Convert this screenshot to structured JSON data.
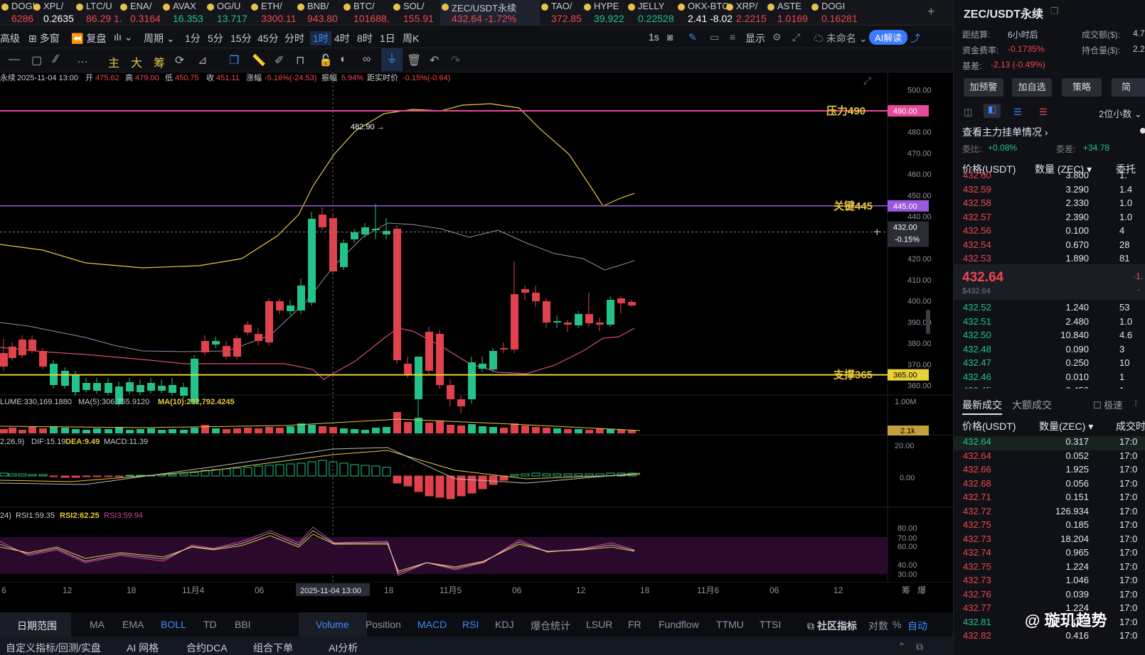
{
  "ticker": [
    {
      "sym": "DOGI",
      "px": "6286",
      "c": "#f0464f"
    },
    {
      "sym": "XPL/",
      "px": "0.2635",
      "c": "#ffffff"
    },
    {
      "sym": "LTC/U",
      "px": "86.29 1.",
      "c": "#f0464f"
    },
    {
      "sym": "ENA/",
      "px": "0.3164",
      "c": "#f0464f"
    },
    {
      "sym": "AVAX",
      "px": "16.353",
      "c": "#23c28a"
    },
    {
      "sym": "OG/U",
      "px": "13.717",
      "c": "#23c28a"
    },
    {
      "sym": "ETH/",
      "px": "3300.11",
      "c": "#f0464f"
    },
    {
      "sym": "BNB/",
      "px": "943.80",
      "c": "#f0464f"
    },
    {
      "sym": "BTC/",
      "px": "101688.",
      "c": "#f0464f"
    },
    {
      "sym": "SOL/",
      "px": "155.91",
      "c": "#f0464f"
    },
    {
      "sym": "ZEC/USDT永续",
      "px": "432.64 -1.72%",
      "c": "#f0464f",
      "active": true
    },
    {
      "sym": "TAO/",
      "px": "372.85",
      "c": "#f0464f"
    },
    {
      "sym": "HYPE",
      "px": "39.922",
      "c": "#23c28a"
    },
    {
      "sym": "JELLY",
      "px": "0.22528",
      "c": "#23c28a"
    },
    {
      "sym": "OKX-BTC",
      "px": "2.41 -8.02",
      "c": "#ffffff"
    },
    {
      "sym": "XRP/",
      "px": "2.2215",
      "c": "#f0464f"
    },
    {
      "sym": "ASTE",
      "px": "1.0169",
      "c": "#f0464f"
    },
    {
      "sym": "DOGI",
      "px": "0.16281",
      "c": "#f0464f"
    }
  ],
  "toolbar1": {
    "adv": "高级",
    "multi": "多窗",
    "restore": "复盘",
    "period": "周期",
    "p1": "1分",
    "p5": "5分",
    "p15": "15分",
    "p45": "45分",
    "pt": "分时",
    "p1h": "1时",
    "p4h": "4时",
    "p8h": "8时",
    "p1d": "1日",
    "pw": "周K",
    "s1": "1s",
    "show": "显示",
    "unnamed": "未命名",
    "ai": "AI解读"
  },
  "toolbar2": {
    "main": "主",
    "big": "大",
    "chip": "筹"
  },
  "info": {
    "name": "永续",
    "time": "2025-11-04 13:00",
    "open_l": "开",
    "open": "475.62",
    "high_l": "高",
    "high": "479.00",
    "low_l": "低",
    "low": "450.75",
    "close_l": "收",
    "close": "451.11",
    "chg_l": "涨幅",
    "chg": "-5.16%(-24.53)",
    "amp_l": "振幅",
    "amp": "5.94%",
    "rt_l": "距实时价",
    "rt": "-0.15%(-0.64)"
  },
  "levels": {
    "press": "压力490",
    "press_val": "490.00",
    "key": "关键445",
    "key_val": "445.00",
    "support": "支撑365",
    "support_val": "365.00",
    "current": "432.00",
    "current_pct": "-0.15%",
    "peak": "482.90 →",
    "vol_tag": "2.1k"
  },
  "price_axis": [
    "500.00",
    "480.00",
    "470.00",
    "460.00",
    "450.00",
    "440.00",
    "420.00",
    "410.00",
    "400.00",
    "390.00",
    "380.00",
    "370.00",
    "360.00"
  ],
  "vol_axis": "1.00M",
  "macd_axis": [
    "20.00",
    "0.00"
  ],
  "rsi_axis": [
    "80.00",
    "70.00",
    "60.00",
    "40.00",
    "30.00"
  ],
  "vol_info": {
    "l1": "LUME:330,169.1880",
    "l2": "MA(5):306,755.9120",
    "l3": "MA(10):232,792.4245"
  },
  "macd_info": {
    "l1": "2,26,9)",
    "l2": "DIF:15.19",
    "l3": "DEA:9.49",
    "l4": "MACD:11.39"
  },
  "rsi_info": {
    "l1": "24)",
    "l2": "RSI1:59.35",
    "l3": "RSI2:62.25",
    "l4": "RSI3:59.94"
  },
  "time_axis": [
    "6",
    "12",
    "18",
    "11月4",
    "06",
    "2025-11-04 13:00",
    "18",
    "11月5",
    "06",
    "12",
    "18",
    "11月6",
    "06",
    "12"
  ],
  "time_axis_right": [
    "筹",
    "爆"
  ],
  "bottom": {
    "range": "日期范围",
    "ma": "MA",
    "ema": "EMA",
    "boll": "BOLL",
    "td": "TD",
    "bbi": "BBI",
    "volume": "Volume",
    "position": "Position",
    "macd": "MACD",
    "rsi": "RSI",
    "kdj": "KDJ",
    "liq": "爆仓统计",
    "lsur": "LSUR",
    "fr": "FR",
    "fundflow": "Fundflow",
    "ttmu": "TTMU",
    "ttsi": "TTSI",
    "community": "社区指标",
    "log": "对数",
    "pct": "%",
    "auto": "自动"
  },
  "foot": {
    "f1": "自定义指标/回测/实盘",
    "f2": "AI 网格",
    "f3": "合约DCA",
    "f4": "组合下单",
    "f5": "AI分析"
  },
  "side": {
    "title": "ZEC/USDT永续",
    "settle_l": "距结算:",
    "settle": "6小时后",
    "turn_l": "成交额($):",
    "turn": "4.7",
    "fund_l": "资金费率:",
    "fund": "-0.1735%",
    "hold_l": "持仓量($):",
    "hold": "2.2",
    "basis_l": "基差:",
    "basis": "-2.13 (-0.49%)",
    "b1": "加预警",
    "b2": "加自选",
    "b3": "策略",
    "b4": "简",
    "decimal": "2位小数",
    "whale": "查看主力挂单情况",
    "ratio_l": "委比:",
    "ratio": "+0.08%",
    "diff_l": "委差:",
    "diff": "+34.78",
    "h_price": "价格(USDT)",
    "h_qty": "数量 (ZEC)",
    "h_tot": "委托",
    "asks": [
      [
        "432.60",
        "3.800",
        "1."
      ],
      [
        "432.59",
        "3.290",
        "1.4"
      ],
      [
        "432.58",
        "2.330",
        "1.0"
      ],
      [
        "432.57",
        "2.390",
        "1.0"
      ],
      [
        "432.56",
        "0.100",
        "4"
      ],
      [
        "432.54",
        "0.670",
        "28"
      ],
      [
        "432.53",
        "1.890",
        "81"
      ]
    ],
    "last": "432.64",
    "last_usd": "$432.64",
    "last_chg": "-1.",
    "last_chg2": "-",
    "bids": [
      [
        "432.52",
        "1.240",
        "53"
      ],
      [
        "432.51",
        "2.480",
        "1.0"
      ],
      [
        "432.50",
        "10.840",
        "4.6"
      ],
      [
        "432.48",
        "0.090",
        "3"
      ],
      [
        "432.47",
        "0.250",
        "10"
      ],
      [
        "432.46",
        "0.010",
        "1"
      ],
      [
        "432.45",
        "0.450",
        "1"
      ]
    ],
    "tabs_latest": "最新成交",
    "tabs_big": "大额成交",
    "fast": "极速",
    "t_price": "价格(USDT)",
    "t_qty": "数量(ZEC)",
    "t_time": "成交时",
    "trades": [
      [
        "432.64",
        "0.317",
        "17:0",
        "g"
      ],
      [
        "432.64",
        "0.052",
        "17:0",
        "r"
      ],
      [
        "432.66",
        "1.925",
        "17:0",
        "r"
      ],
      [
        "432.68",
        "0.056",
        "17:0",
        "r"
      ],
      [
        "432.71",
        "0.151",
        "17:0",
        "r"
      ],
      [
        "432.72",
        "126.934",
        "17:0",
        "r"
      ],
      [
        "432.75",
        "0.185",
        "17:0",
        "r"
      ],
      [
        "432.73",
        "18.204",
        "17:0",
        "r"
      ],
      [
        "432.74",
        "0.965",
        "17:0",
        "r"
      ],
      [
        "432.75",
        "1.224",
        "17:0",
        "r"
      ],
      [
        "432.73",
        "1.046",
        "17:0",
        "r"
      ],
      [
        "432.76",
        "0.039",
        "17:0",
        "r"
      ],
      [
        "432.77",
        "1.224",
        "17:0",
        "r"
      ],
      [
        "432.81",
        "1.033",
        "17:0",
        "g"
      ],
      [
        "432.82",
        "0.416",
        "17:0",
        "r"
      ]
    ],
    "watermark": "@ 璇玑趋势"
  }
}
